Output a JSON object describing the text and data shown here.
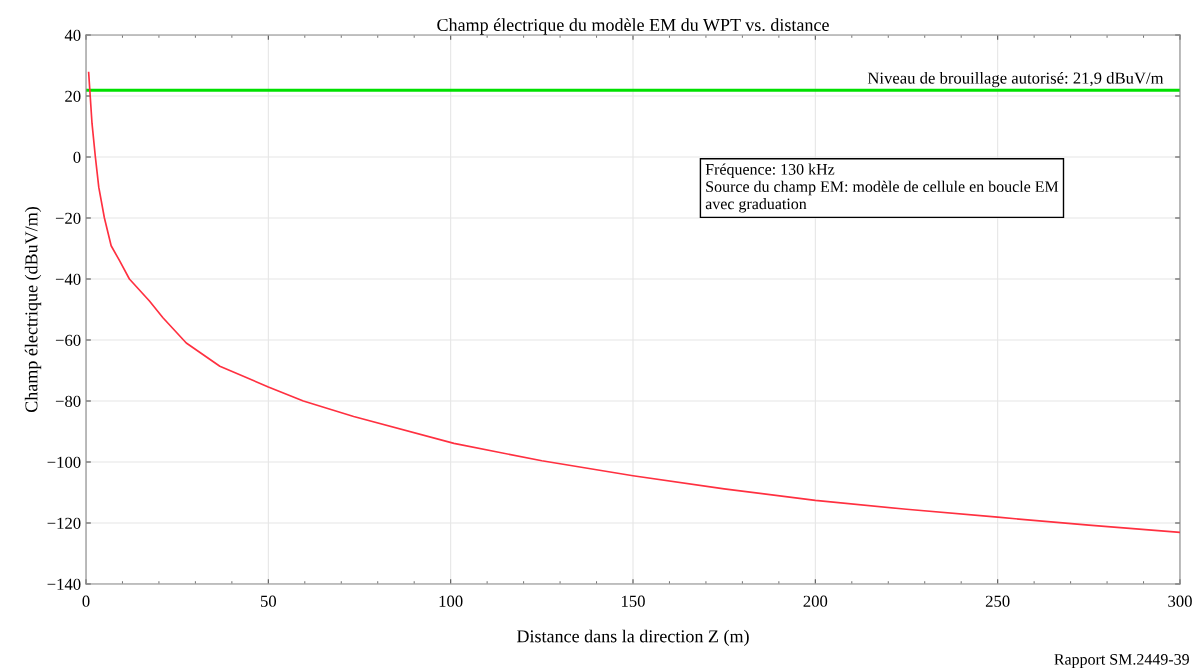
{
  "chart_data": {
    "type": "line",
    "title": "Champ électrique du modèle EM du WPT vs. distance",
    "xlabel": "Distance dans la direction Z (m)",
    "ylabel": "Champ électrique (dBuV/m)",
    "series": [
      {
        "color": "#ff3040",
        "x": [
          0.73,
          1.65,
          2.57,
          3.5,
          5.05,
          6.9,
          9.2,
          11.9,
          17.4,
          21.1,
          27.5,
          36.7,
          50,
          59.6,
          73.4,
          100.9,
          125,
          150,
          175,
          200,
          225,
          250,
          275,
          300
        ],
        "values": [
          27.7,
          11.0,
          0,
          -9.9,
          -20,
          -29.1,
          -34.0,
          -40,
          -47.2,
          -52.7,
          -61,
          -68.6,
          -75.4,
          -80,
          -85.1,
          -93.9,
          -99.6,
          -104.5,
          -108.8,
          -112.6,
          -115.5,
          -118.1,
          -120.7,
          -123.1
        ]
      }
    ],
    "xlim": [
      0,
      300
    ],
    "xticks": [
      0,
      50,
      100,
      150,
      200,
      250,
      300
    ],
    "ylim": [
      -140,
      40
    ],
    "yticks": [
      {
        "value": -140,
        "label": "−140"
      },
      {
        "value": -120,
        "label": "−120"
      },
      {
        "value": -100,
        "label": "−100"
      },
      {
        "value": -80,
        "label": "−80"
      },
      {
        "value": -60,
        "label": "−60"
      },
      {
        "value": -40,
        "label": "−40"
      },
      {
        "value": -20,
        "label": "−20"
      },
      0,
      20,
      40
    ],
    "grid": true,
    "marker": "none",
    "line_style": "solid",
    "ref_lines": [
      {
        "axis": "y",
        "value": 21.9,
        "label": "Niveau de brouillage autorisé: 21,9 dBuV/m",
        "color": "#00e000",
        "line_style": "solid"
      }
    ],
    "annotations": [
      "Fréquence: 130 kHz\nSource du champ EM: modèle de cellule en boucle EM\navec graduation",
      "Rapport SM.2449-39"
    ]
  }
}
